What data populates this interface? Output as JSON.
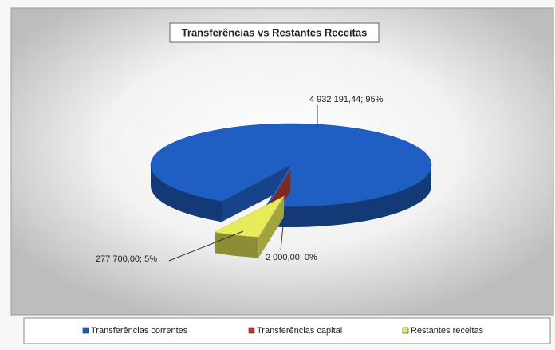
{
  "chart_data": {
    "type": "pie",
    "title": "Transferências vs Restantes Receitas",
    "categories": [
      "Transferências correntes",
      "Transferências capital",
      "Restantes receitas"
    ],
    "values": [
      4932191.44,
      2000.0,
      277700.0
    ],
    "value_labels": [
      "4 932 191,44; 95%",
      "2 000,00; 0%",
      "277 700,00; 5%"
    ],
    "colors": [
      "#1f5fc4",
      "#b23a2a",
      "#e8ec5a"
    ],
    "legend": "bottom"
  }
}
